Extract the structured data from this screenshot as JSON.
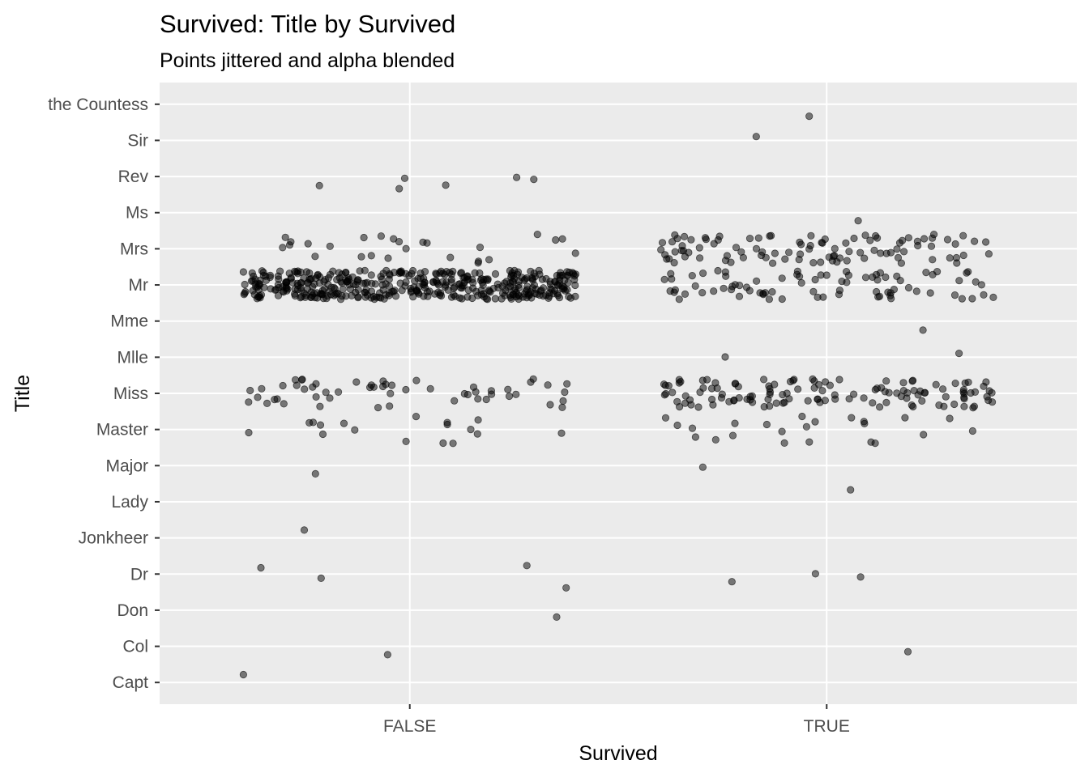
{
  "chart_data": {
    "type": "scatter",
    "title": "Survived: Title by Survived",
    "subtitle": "Points jittered and alpha blended",
    "xlabel": "Survived",
    "ylabel": "Title",
    "x_categories": [
      "FALSE",
      "TRUE"
    ],
    "y_categories": [
      "Capt",
      "Col",
      "Don",
      "Dr",
      "Jonkheer",
      "Lady",
      "Major",
      "Master",
      "Miss",
      "Mlle",
      "Mme",
      "Mr",
      "Mrs",
      "Ms",
      "Rev",
      "Sir",
      "the Countess"
    ],
    "grid": true,
    "legend": "none",
    "point_color": "#000000",
    "point_alpha": 0.5,
    "panel_background": "#ebebeb",
    "grid_color": "#ffffff",
    "jitter": {
      "width": 0.4,
      "height": 0.4
    },
    "counts": [
      {
        "title": "Capt",
        "survived": "FALSE",
        "n": 1
      },
      {
        "title": "Col",
        "survived": "FALSE",
        "n": 1
      },
      {
        "title": "Col",
        "survived": "TRUE",
        "n": 1
      },
      {
        "title": "Don",
        "survived": "FALSE",
        "n": 1
      },
      {
        "title": "Dr",
        "survived": "FALSE",
        "n": 4
      },
      {
        "title": "Dr",
        "survived": "TRUE",
        "n": 3
      },
      {
        "title": "Jonkheer",
        "survived": "FALSE",
        "n": 1
      },
      {
        "title": "Lady",
        "survived": "TRUE",
        "n": 1
      },
      {
        "title": "Major",
        "survived": "FALSE",
        "n": 1
      },
      {
        "title": "Major",
        "survived": "TRUE",
        "n": 1
      },
      {
        "title": "Master",
        "survived": "FALSE",
        "n": 17
      },
      {
        "title": "Master",
        "survived": "TRUE",
        "n": 23
      },
      {
        "title": "Miss",
        "survived": "FALSE",
        "n": 55
      },
      {
        "title": "Miss",
        "survived": "TRUE",
        "n": 127
      },
      {
        "title": "Mlle",
        "survived": "TRUE",
        "n": 2
      },
      {
        "title": "Mme",
        "survived": "TRUE",
        "n": 1
      },
      {
        "title": "Mr",
        "survived": "FALSE",
        "n": 436
      },
      {
        "title": "Mr",
        "survived": "TRUE",
        "n": 81
      },
      {
        "title": "Mrs",
        "survived": "FALSE",
        "n": 26
      },
      {
        "title": "Mrs",
        "survived": "TRUE",
        "n": 99
      },
      {
        "title": "Ms",
        "survived": "TRUE",
        "n": 1
      },
      {
        "title": "Rev",
        "survived": "FALSE",
        "n": 6
      },
      {
        "title": "Sir",
        "survived": "TRUE",
        "n": 1
      },
      {
        "title": "the Countess",
        "survived": "TRUE",
        "n": 1
      }
    ]
  }
}
